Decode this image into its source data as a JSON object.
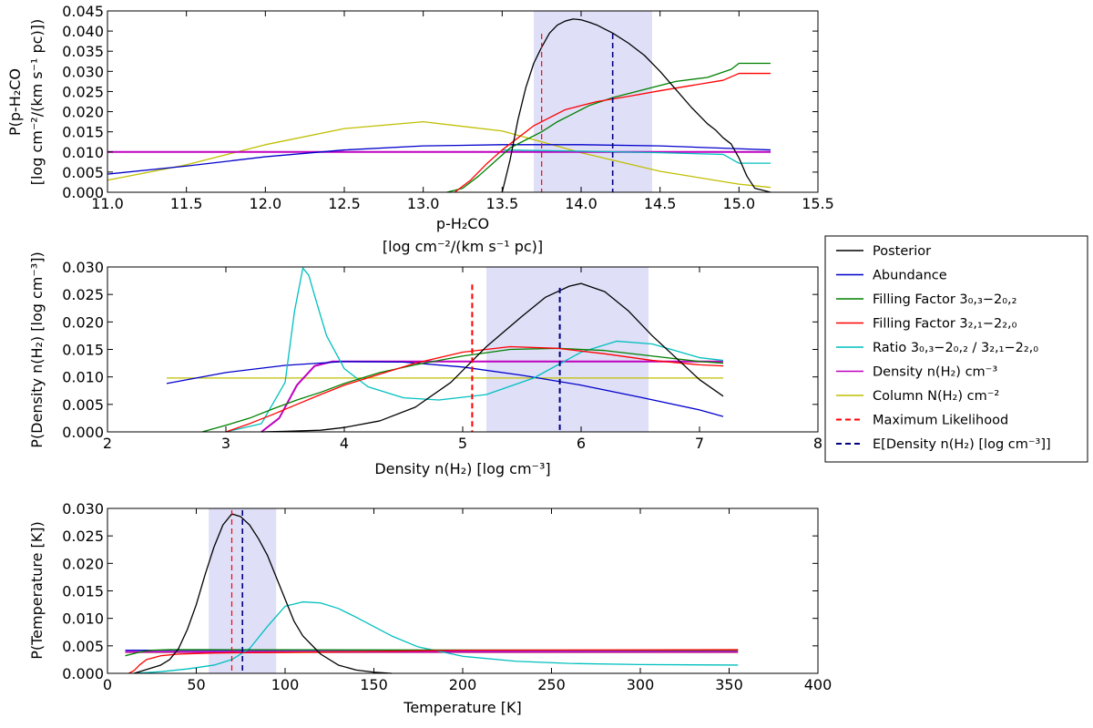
{
  "chart_data": [
    {
      "type": "line",
      "id": "column",
      "xlabel": "p-H2CO",
      "xlabel_line1": "p-H₂CO",
      "xlabel_line2": "[log cm⁻²/(km s⁻¹ pc)]",
      "ylabel": "P(p-H2CO [log cm-2/(km s-1 pc)])",
      "ylabel_line1": "P(p-H₂CO",
      "ylabel_line2": "[log cm⁻²/(km s⁻¹ pc)])",
      "xlim": [
        11.0,
        15.5
      ],
      "ylim": [
        0.0,
        0.045
      ],
      "xticks": [
        "11.0",
        "11.5",
        "12.0",
        "12.5",
        "13.0",
        "13.5",
        "14.0",
        "14.5",
        "15.0",
        "15.5"
      ],
      "yticks": [
        "0.000",
        "0.005",
        "0.010",
        "0.015",
        "0.020",
        "0.025",
        "0.030",
        "0.035",
        "0.040",
        "0.045"
      ],
      "max_likelihood": 13.75,
      "expectation": 14.2,
      "shaded_interval": [
        13.7,
        14.45
      ],
      "series": [
        {
          "name": "Posterior",
          "color": "#000000",
          "x": [
            13.5,
            13.55,
            13.6,
            13.65,
            13.7,
            13.75,
            13.8,
            13.85,
            13.9,
            13.95,
            14.0,
            14.05,
            14.1,
            14.15,
            14.2,
            14.3,
            14.4,
            14.5,
            14.6,
            14.7,
            14.8,
            14.85,
            14.9,
            14.95,
            15.0,
            15.05,
            15.1,
            15.2
          ],
          "values": [
            0.0,
            0.008,
            0.018,
            0.026,
            0.032,
            0.036,
            0.0395,
            0.0415,
            0.0425,
            0.043,
            0.0428,
            0.0422,
            0.0415,
            0.0405,
            0.0395,
            0.037,
            0.034,
            0.03,
            0.0255,
            0.021,
            0.017,
            0.0155,
            0.0135,
            0.012,
            0.0085,
            0.004,
            0.001,
            0.0
          ]
        },
        {
          "name": "Abundance",
          "color": "#0000cc",
          "x": [
            11.0,
            11.5,
            12.0,
            12.5,
            13.0,
            13.5,
            14.0,
            14.5,
            15.0,
            15.2
          ],
          "values": [
            0.0045,
            0.0065,
            0.0088,
            0.0105,
            0.0115,
            0.0118,
            0.0118,
            0.0115,
            0.0108,
            0.0105
          ]
        },
        {
          "name": "Filling Factor 3(0,3)-2(0,2)",
          "color": "#008000",
          "x": [
            13.15,
            13.25,
            13.35,
            13.45,
            13.55,
            13.65,
            13.75,
            13.85,
            13.95,
            14.05,
            14.2,
            14.4,
            14.6,
            14.8,
            14.95,
            15.0,
            15.2
          ],
          "values": [
            0.0,
            0.001,
            0.004,
            0.0075,
            0.011,
            0.013,
            0.015,
            0.0175,
            0.0195,
            0.0215,
            0.0235,
            0.0255,
            0.0275,
            0.0285,
            0.0305,
            0.032,
            0.032
          ]
        },
        {
          "name": "Filling Factor 3(2,1)-2(2,0)",
          "color": "#ff0000",
          "x": [
            13.2,
            13.3,
            13.4,
            13.5,
            13.6,
            13.7,
            13.8,
            13.9,
            14.0,
            14.1,
            14.3,
            14.5,
            14.7,
            14.9,
            15.0,
            15.2
          ],
          "values": [
            0.0,
            0.003,
            0.007,
            0.0105,
            0.0135,
            0.0165,
            0.0185,
            0.0205,
            0.0215,
            0.0225,
            0.0238,
            0.0252,
            0.0265,
            0.0278,
            0.0295,
            0.0295
          ]
        },
        {
          "name": "Ratio",
          "color": "#00bfbf",
          "x": [
            13.5,
            14.0,
            14.5,
            14.9,
            15.0,
            15.2
          ],
          "values": [
            0.0105,
            0.0102,
            0.0098,
            0.0094,
            0.0072,
            0.0072
          ]
        },
        {
          "name": "Density",
          "color": "#bf00bf",
          "x": [
            11.0,
            15.2
          ],
          "values": [
            0.01,
            0.01
          ]
        },
        {
          "name": "Column",
          "color": "#bfbf00",
          "x": [
            11.0,
            11.5,
            12.0,
            12.5,
            13.0,
            13.5,
            14.0,
            14.5,
            15.0,
            15.2
          ],
          "values": [
            0.003,
            0.0068,
            0.0118,
            0.0158,
            0.0175,
            0.0152,
            0.0098,
            0.0052,
            0.002,
            0.0012
          ]
        }
      ]
    },
    {
      "type": "line",
      "id": "density",
      "xlabel": "Density n(H2) [log cm-3]",
      "xlabel_text": "Density n(H₂) [log cm⁻³]",
      "ylabel": "P(Density n(H2) [log cm-3])",
      "ylabel_text": "P(Density n(H₂) [log cm⁻³])",
      "xlim": [
        2,
        8
      ],
      "ylim": [
        0.0,
        0.03
      ],
      "xticks": [
        "2",
        "3",
        "4",
        "5",
        "6",
        "7",
        "8"
      ],
      "yticks": [
        "0.000",
        "0.005",
        "0.010",
        "0.015",
        "0.020",
        "0.025",
        "0.030"
      ],
      "max_likelihood": 5.08,
      "expectation": 5.82,
      "shaded_interval": [
        5.2,
        6.57
      ],
      "series": [
        {
          "name": "Posterior",
          "color": "#000000",
          "x": [
            3.3,
            3.5,
            3.8,
            4.0,
            4.3,
            4.6,
            4.9,
            5.2,
            5.5,
            5.7,
            5.9,
            6.0,
            6.2,
            6.4,
            6.6,
            6.8,
            7.0,
            7.2
          ],
          "values": [
            0.0,
            0.0001,
            0.0003,
            0.0008,
            0.002,
            0.0045,
            0.009,
            0.0155,
            0.021,
            0.0245,
            0.0265,
            0.027,
            0.0255,
            0.022,
            0.0175,
            0.0135,
            0.0095,
            0.0065
          ]
        },
        {
          "name": "Abundance",
          "color": "#0000cc",
          "x": [
            2.5,
            3.0,
            3.5,
            4.0,
            4.5,
            5.0,
            5.5,
            6.0,
            6.5,
            7.0,
            7.2
          ],
          "values": [
            0.0088,
            0.0108,
            0.0121,
            0.0128,
            0.0127,
            0.0118,
            0.0103,
            0.0085,
            0.0063,
            0.004,
            0.0028
          ]
        },
        {
          "name": "Filling Factor 3(0,3)-2(0,2)",
          "color": "#008000",
          "x": [
            2.8,
            3.0,
            3.2,
            3.4,
            3.6,
            3.8,
            4.0,
            4.3,
            4.6,
            5.0,
            5.4,
            5.8,
            6.2,
            6.6,
            7.0,
            7.2
          ],
          "values": [
            0.0,
            0.0012,
            0.0025,
            0.0042,
            0.0058,
            0.0072,
            0.0088,
            0.0108,
            0.0122,
            0.0138,
            0.015,
            0.0152,
            0.0148,
            0.0138,
            0.0128,
            0.0125
          ]
        },
        {
          "name": "Filling Factor 3(2,1)-2(2,0)",
          "color": "#ff0000",
          "x": [
            3.0,
            3.2,
            3.4,
            3.6,
            3.8,
            4.0,
            4.3,
            4.6,
            5.0,
            5.4,
            5.8,
            6.2,
            6.6,
            7.0,
            7.2
          ],
          "values": [
            0.0,
            0.0015,
            0.0032,
            0.005,
            0.0068,
            0.0085,
            0.0105,
            0.0125,
            0.0145,
            0.0155,
            0.0152,
            0.0142,
            0.013,
            0.0122,
            0.012
          ]
        },
        {
          "name": "Ratio",
          "color": "#00bfbf",
          "x": [
            3.0,
            3.3,
            3.5,
            3.58,
            3.65,
            3.7,
            3.76,
            3.85,
            4.0,
            4.2,
            4.5,
            4.8,
            5.2,
            5.6,
            6.0,
            6.3,
            6.6,
            7.0,
            7.2
          ],
          "values": [
            0.0,
            0.0015,
            0.009,
            0.022,
            0.0298,
            0.0285,
            0.024,
            0.0175,
            0.0115,
            0.0082,
            0.0062,
            0.0058,
            0.0068,
            0.0098,
            0.0145,
            0.0165,
            0.016,
            0.0135,
            0.013
          ]
        },
        {
          "name": "Density",
          "color": "#bf00bf",
          "x": [
            3.3,
            3.45,
            3.6,
            3.75,
            3.9,
            4.0,
            4.5,
            5.0,
            6.0,
            7.0,
            7.2
          ],
          "values": [
            0.0,
            0.0025,
            0.0085,
            0.012,
            0.0128,
            0.0128,
            0.0128,
            0.0128,
            0.0128,
            0.0128,
            0.0128
          ]
        },
        {
          "name": "Column",
          "color": "#bfbf00",
          "x": [
            2.5,
            7.2
          ],
          "values": [
            0.0098,
            0.0098
          ]
        }
      ]
    },
    {
      "type": "line",
      "id": "temperature",
      "xlabel": "Temperature [K]",
      "ylabel": "P(Temperature [K])",
      "xlim": [
        0,
        400
      ],
      "ylim": [
        0.0,
        0.03
      ],
      "xticks": [
        "0",
        "50",
        "100",
        "150",
        "200",
        "250",
        "300",
        "350",
        "400"
      ],
      "yticks": [
        "0.000",
        "0.005",
        "0.010",
        "0.015",
        "0.020",
        "0.025",
        "0.030"
      ],
      "max_likelihood": 70,
      "expectation": 76,
      "shaded_interval": [
        57,
        95
      ],
      "series": [
        {
          "name": "Posterior",
          "color": "#000000",
          "x": [
            15,
            20,
            25,
            30,
            35,
            40,
            45,
            50,
            55,
            60,
            65,
            70,
            75,
            80,
            85,
            90,
            95,
            100,
            105,
            110,
            120,
            130,
            140,
            150,
            160
          ],
          "values": [
            0.0,
            0.0005,
            0.001,
            0.0015,
            0.0025,
            0.0045,
            0.008,
            0.0125,
            0.018,
            0.023,
            0.027,
            0.029,
            0.0285,
            0.027,
            0.0245,
            0.0215,
            0.0175,
            0.0135,
            0.0095,
            0.0068,
            0.0035,
            0.0015,
            0.0006,
            0.0002,
            0.0
          ]
        },
        {
          "name": "Abundance",
          "color": "#0000cc",
          "x": [
            10,
            355
          ],
          "values": [
            0.0042,
            0.0042
          ]
        },
        {
          "name": "Filling Factor 3(0,3)-2(0,2)",
          "color": "#008000",
          "x": [
            10,
            15,
            20,
            25,
            35,
            50,
            355
          ],
          "values": [
            0.0032,
            0.0036,
            0.004,
            0.0042,
            0.0043,
            0.0043,
            0.0042
          ]
        },
        {
          "name": "Filling Factor 3(2,1)-2(2,0)",
          "color": "#ff0000",
          "x": [
            12,
            15,
            18,
            22,
            30,
            40,
            60,
            100,
            200,
            355
          ],
          "values": [
            0.0,
            0.0005,
            0.0015,
            0.0025,
            0.0032,
            0.0035,
            0.0037,
            0.0038,
            0.0042,
            0.0043
          ]
        },
        {
          "name": "Ratio",
          "color": "#00bfbf",
          "x": [
            15,
            30,
            45,
            60,
            70,
            80,
            90,
            100,
            110,
            120,
            130,
            140,
            150,
            160,
            175,
            200,
            230,
            260,
            300,
            355
          ],
          "values": [
            0.0,
            0.0003,
            0.0008,
            0.0015,
            0.0025,
            0.0045,
            0.0085,
            0.0122,
            0.013,
            0.0128,
            0.0118,
            0.0102,
            0.0085,
            0.0068,
            0.0048,
            0.0031,
            0.0022,
            0.0018,
            0.0016,
            0.0015
          ]
        },
        {
          "name": "Density",
          "color": "#bf00bf",
          "x": [
            10,
            355
          ],
          "values": [
            0.0039,
            0.0039
          ]
        },
        {
          "name": "Column",
          "color": "#bfbf00",
          "x": [
            10,
            355
          ],
          "values": [
            0.0038,
            0.0038
          ]
        }
      ]
    }
  ],
  "legend": {
    "entries": [
      {
        "label": "Posterior",
        "color": "#000000",
        "style": "solid"
      },
      {
        "label": "Abundance",
        "color": "#0000cc",
        "style": "solid"
      },
      {
        "label": "Filling Factor 3₀,₃−2₀,₂",
        "color": "#008000",
        "style": "solid"
      },
      {
        "label": "Filling Factor 3₂,₁−2₂,₀",
        "color": "#ff0000",
        "style": "solid"
      },
      {
        "label": "Ratio 3₀,₃−2₀,₂ / 3₂,₁−2₂,₀",
        "color": "#00bfbf",
        "style": "solid"
      },
      {
        "label": "Density n(H₂) cm⁻³",
        "color": "#bf00bf",
        "style": "solid"
      },
      {
        "label": "Column N(H₂) cm⁻²",
        "color": "#bfbf00",
        "style": "solid"
      },
      {
        "label": "Maximum Likelihood",
        "color": "#ff0000",
        "style": "dashed"
      },
      {
        "label": "E[Density n(H₂) [log cm⁻³]]",
        "color": "#000080",
        "style": "dashed"
      }
    ]
  },
  "colors": {
    "shade": "#d9d9f7",
    "ml": "#ff0000",
    "expect": "#000080"
  }
}
